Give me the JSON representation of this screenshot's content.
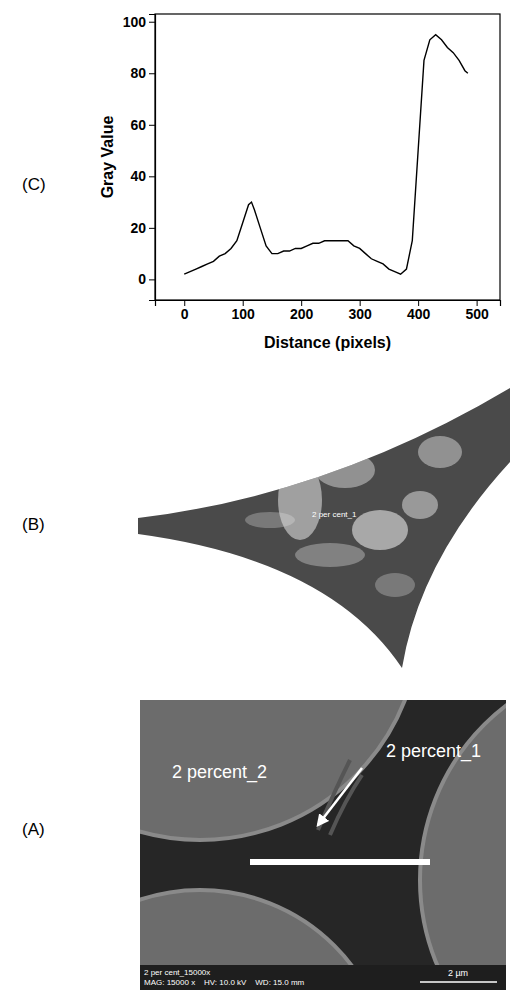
{
  "chart_data": {
    "type": "line",
    "panel_label": "(C)",
    "x_label": "Distance (pixels)",
    "y_label": "Gray Value",
    "x": [
      0,
      10,
      20,
      30,
      40,
      50,
      60,
      70,
      80,
      90,
      100,
      110,
      115,
      120,
      130,
      140,
      150,
      160,
      170,
      180,
      190,
      200,
      210,
      220,
      230,
      240,
      250,
      260,
      270,
      280,
      290,
      300,
      310,
      320,
      330,
      340,
      350,
      360,
      370,
      380,
      390,
      400,
      410,
      420,
      430,
      440,
      450,
      460,
      470,
      480,
      485
    ],
    "values": [
      2,
      3,
      4,
      5,
      6,
      7,
      9,
      10,
      12,
      15,
      22,
      29,
      30,
      27,
      20,
      13,
      10,
      10,
      11,
      11,
      12,
      12,
      13,
      14,
      14,
      15,
      15,
      15,
      15,
      15,
      13,
      12,
      10,
      8,
      7,
      6,
      4,
      3,
      2,
      4,
      15,
      50,
      85,
      93,
      95,
      93,
      90,
      88,
      85,
      81,
      80
    ],
    "color": "#000000",
    "xlim": [
      -50,
      540
    ],
    "ylim": [
      -8,
      103
    ],
    "xticks": [
      0,
      100,
      200,
      300,
      400,
      500
    ],
    "yticks": [
      0,
      20,
      40,
      60,
      80,
      100
    ]
  },
  "panels": [
    {
      "label": "(B)",
      "annotations": [
        "2 per cent_1"
      ]
    },
    {
      "label": "(A)",
      "annotations": [
        "2 percent_2",
        "2 percent_1"
      ],
      "scale_bar": "2 µm",
      "footer": [
        "2 per cent_15000x",
        "MAG: 15000 x    HV: 10.0 kV    WD: 15.0 mm"
      ]
    }
  ]
}
